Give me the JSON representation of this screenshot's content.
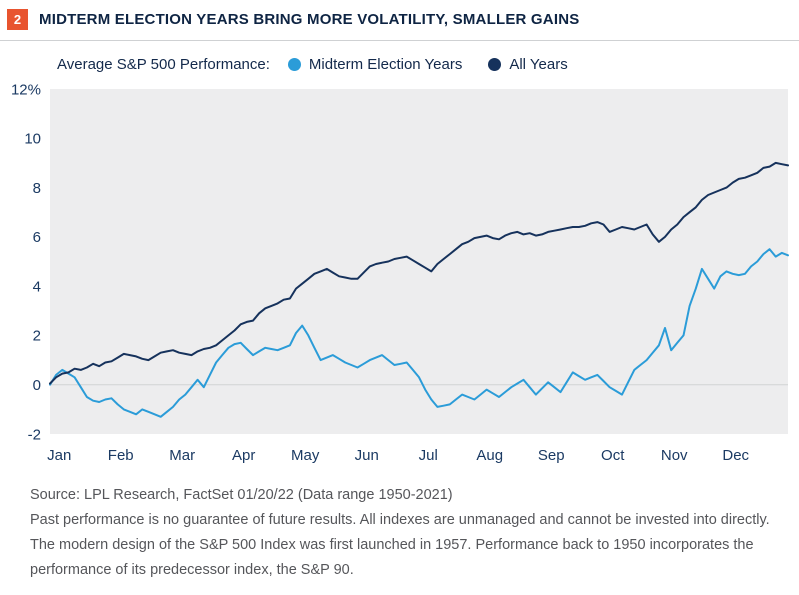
{
  "header": {
    "figure_number": "2",
    "title": "MIDTERM ELECTION YEARS BRING MORE VOLATILITY, SMALLER GAINS"
  },
  "legend": {
    "label": "Average S&P 500 Performance:",
    "items": [
      {
        "label": "Midterm Election Years",
        "color": "#2b9cd8"
      },
      {
        "label": "All Years",
        "color": "#16325c"
      }
    ]
  },
  "chart_data": {
    "type": "line",
    "title": "Average S&P 500 Performance",
    "x_unit": "calendar year (Jan through Dec), cumulative % return",
    "x_tick_labels": [
      "Jan",
      "Feb",
      "Mar",
      "Apr",
      "May",
      "Jun",
      "Jul",
      "Aug",
      "Sep",
      "Oct",
      "Nov",
      "Dec"
    ],
    "y_ticks": [
      12,
      10,
      8,
      6,
      4,
      2,
      0,
      -2
    ],
    "y_tick_labels": [
      "12%",
      "10",
      "8",
      "6",
      "4",
      "2",
      "0",
      "-2"
    ],
    "ylim": [
      -2,
      12
    ],
    "x_step": 0.1,
    "plot_bg": "#ededee",
    "zero_line_color": "#d2d3d4",
    "grid": false,
    "legend_position": "top",
    "series": [
      {
        "name": "Midterm Election Years",
        "color": "#2b9cd8",
        "values": [
          0.0,
          0.4,
          0.6,
          0.45,
          0.3,
          -0.1,
          -0.5,
          -0.65,
          -0.7,
          -0.6,
          -0.55,
          -0.8,
          -1.0,
          -1.1,
          -1.2,
          -1.0,
          -1.1,
          -1.2,
          -1.3,
          -1.1,
          -0.9,
          -0.6,
          -0.4,
          -0.1,
          0.2,
          -0.1,
          0.4,
          0.9,
          1.2,
          1.5,
          1.65,
          1.7,
          1.45,
          1.2,
          1.35,
          1.5,
          1.45,
          1.4,
          1.5,
          1.6,
          2.1,
          2.4,
          2.0,
          1.5,
          1.0,
          1.1,
          1.2,
          1.05,
          0.9,
          0.8,
          0.7,
          0.85,
          1.0,
          1.1,
          1.2,
          1.0,
          0.8,
          0.85,
          0.9,
          0.6,
          0.3,
          -0.2,
          -0.6,
          -0.9,
          -0.85,
          -0.8,
          -0.6,
          -0.4,
          -0.5,
          -0.6,
          -0.4,
          -0.2,
          -0.35,
          -0.5,
          -0.3,
          -0.1,
          0.05,
          0.2,
          -0.1,
          -0.4,
          -0.15,
          0.1,
          -0.1,
          -0.3,
          0.1,
          0.5,
          0.35,
          0.2,
          0.3,
          0.4,
          0.15,
          -0.1,
          -0.25,
          -0.4,
          0.1,
          0.6,
          0.8,
          1.0,
          1.3,
          1.6,
          2.3,
          1.4,
          1.7,
          2.0,
          3.2,
          3.9,
          4.7,
          4.3,
          3.9,
          4.4,
          4.6,
          4.5,
          4.45,
          4.5,
          4.8,
          5.0,
          5.3,
          5.5,
          5.2,
          5.35,
          5.25
        ]
      },
      {
        "name": "All Years",
        "color": "#16325c",
        "values": [
          0.05,
          0.3,
          0.45,
          0.5,
          0.65,
          0.6,
          0.7,
          0.85,
          0.75,
          0.9,
          0.95,
          1.1,
          1.25,
          1.2,
          1.15,
          1.05,
          1.0,
          1.15,
          1.3,
          1.35,
          1.4,
          1.3,
          1.25,
          1.2,
          1.35,
          1.45,
          1.5,
          1.6,
          1.8,
          2.0,
          2.2,
          2.45,
          2.55,
          2.6,
          2.9,
          3.1,
          3.2,
          3.3,
          3.45,
          3.5,
          3.9,
          4.1,
          4.3,
          4.5,
          4.6,
          4.7,
          4.55,
          4.4,
          4.35,
          4.3,
          4.3,
          4.55,
          4.8,
          4.9,
          4.95,
          5.0,
          5.1,
          5.15,
          5.2,
          5.05,
          4.9,
          4.75,
          4.6,
          4.9,
          5.1,
          5.3,
          5.5,
          5.7,
          5.8,
          5.95,
          6.0,
          6.05,
          5.95,
          5.9,
          6.05,
          6.15,
          6.2,
          6.1,
          6.15,
          6.05,
          6.1,
          6.2,
          6.25,
          6.3,
          6.35,
          6.4,
          6.4,
          6.45,
          6.55,
          6.6,
          6.5,
          6.2,
          6.3,
          6.4,
          6.35,
          6.3,
          6.4,
          6.5,
          6.1,
          5.8,
          6.0,
          6.3,
          6.5,
          6.8,
          7.0,
          7.2,
          7.5,
          7.7,
          7.8,
          7.9,
          8.0,
          8.2,
          8.35,
          8.4,
          8.5,
          8.6,
          8.8,
          8.85,
          9.0,
          8.95,
          8.9
        ]
      }
    ]
  },
  "footer": {
    "lines": [
      "Source: LPL Research, FactSet 01/20/22 (Data range 1950-2021)",
      "Past performance is no guarantee of future results. All indexes are unmanaged and cannot be invested into directly.",
      "The modern design of the S&P 500 Index was first launched in 1957. Performance back to 1950 incorporates the",
      "performance of its predecessor index, the S&P 90."
    ]
  }
}
